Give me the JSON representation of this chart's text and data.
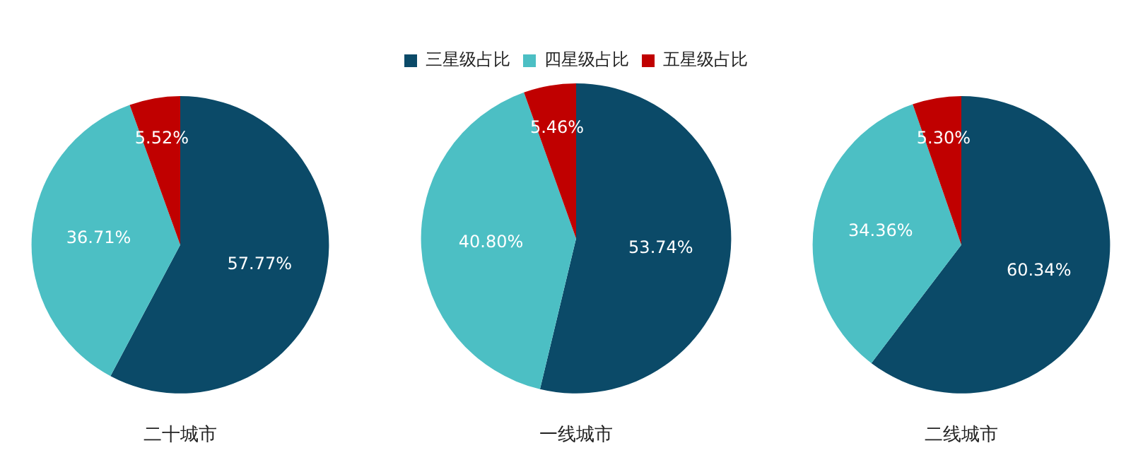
{
  "chart_data": [
    {
      "type": "pie",
      "title": "二十城市",
      "categories": [
        null,
        null,
        null
      ],
      "values": [
        57.77,
        36.71,
        5.52
      ],
      "colors": [
        "#0b4a68",
        "#4cbfc4",
        "#c00000"
      ],
      "value_labels": [
        "57.77%",
        "36.71%",
        "5.52%"
      ]
    },
    {
      "type": "pie",
      "title": "一线城市",
      "categories": [
        "三星级占比",
        "四星级占比",
        "五星级占比"
      ],
      "values": [
        53.74,
        40.8,
        5.46
      ],
      "colors": [
        "#0b4a68",
        "#4cbfc4",
        "#c00000"
      ],
      "value_labels": [
        "53.74%",
        "40.80%",
        "5.46%"
      ],
      "legend": "top"
    },
    {
      "type": "pie",
      "title": "二线城市",
      "categories": [
        null,
        null,
        null
      ],
      "values": [
        60.34,
        34.36,
        5.3
      ],
      "colors": [
        "#0b4a68",
        "#4cbfc4",
        "#c00000"
      ],
      "value_labels": [
        "60.34%",
        "34.36%",
        "5.30%"
      ]
    }
  ]
}
